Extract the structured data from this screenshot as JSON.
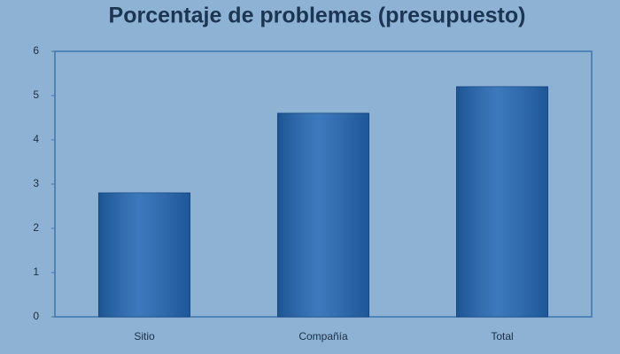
{
  "chart_data": {
    "type": "bar",
    "title": "Porcentaje de problemas (presupuesto)",
    "categories": [
      "Sitio",
      "Compañía",
      "Total"
    ],
    "values": [
      2.8,
      4.6,
      5.2
    ],
    "color": "#2266b3",
    "ylim": [
      0,
      6
    ],
    "yticks": [
      0,
      1,
      2,
      3,
      4,
      5,
      6
    ],
    "grid": false
  }
}
